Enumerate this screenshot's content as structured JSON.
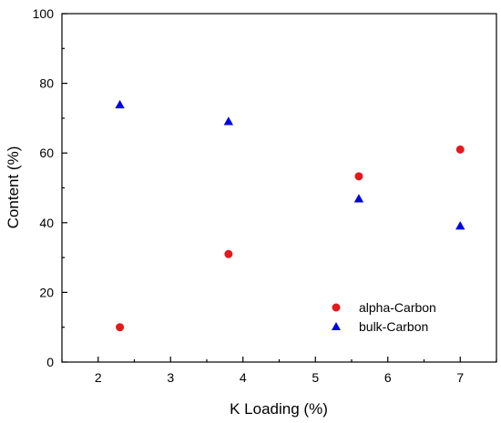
{
  "chart_data": {
    "type": "scatter",
    "xlabel": "K Loading (%)",
    "ylabel": "Content (%)",
    "xlim": [
      1.5,
      7.5
    ],
    "ylim": [
      0,
      100
    ],
    "x_ticks": [
      2,
      3,
      4,
      5,
      6,
      7
    ],
    "x_minor_ticks": [
      1.5,
      2.5,
      3.5,
      4.5,
      5.5,
      6.5,
      7.5
    ],
    "y_ticks": [
      0,
      20,
      40,
      60,
      80,
      100
    ],
    "y_minor_ticks": [
      10,
      30,
      50,
      70,
      90
    ],
    "grid": false,
    "legend_position": "bottom-right",
    "series": [
      {
        "name": "alpha-Carbon",
        "marker": "circle",
        "color": "#e31a1c",
        "x": [
          2.3,
          3.8,
          5.6,
          7.0
        ],
        "y": [
          10,
          31,
          53.3,
          61
        ]
      },
      {
        "name": "bulk-Carbon",
        "marker": "triangle",
        "color": "#0000e0",
        "x": [
          2.3,
          3.8,
          5.6,
          7.0
        ],
        "y": [
          73.8,
          69,
          46.8,
          39
        ]
      }
    ]
  }
}
